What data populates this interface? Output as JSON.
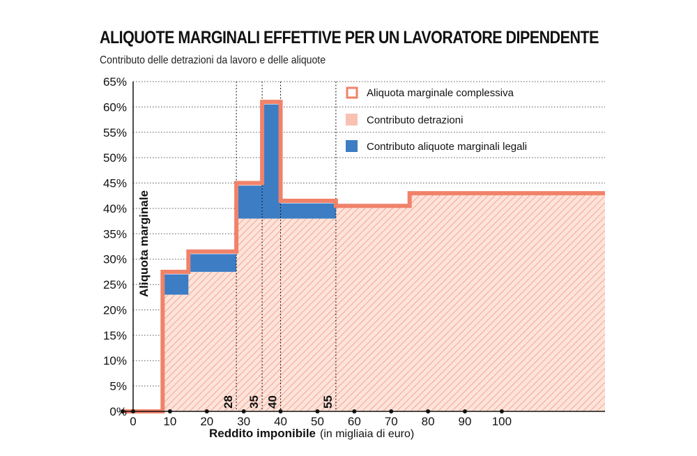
{
  "title": "ALIQUOTE MARGINALI EFFETTIVE PER UN LAVORATORE DIPENDENTE",
  "subtitle": "Contributo delle detrazioni da lavoro e delle aliquote",
  "colors": {
    "total": "#f0826a",
    "detrazioni": "#f7c2b2",
    "legali": "#3c7dc4",
    "grid": "#555555"
  },
  "chart_data": {
    "type": "area",
    "xlabel": "Reddito imponibile",
    "xlabel_unit": "(in migliaia di euro)",
    "ylabel": "Aliquota marginale",
    "xlim": [
      -3,
      128
    ],
    "ylim": [
      0,
      65
    ],
    "x_ticks": [
      0,
      10,
      20,
      30,
      40,
      50,
      60,
      70,
      80,
      90,
      100
    ],
    "y_ticks": [
      0,
      5,
      10,
      15,
      20,
      25,
      30,
      35,
      40,
      45,
      50,
      55,
      60,
      65
    ],
    "y_tick_labels": [
      "0%",
      "5%",
      "10%",
      "15%",
      "20%",
      "25%",
      "30%",
      "35%",
      "40%",
      "45%",
      "50%",
      "55%",
      "60%",
      "65%"
    ],
    "vertical_markers": [
      {
        "x": 28,
        "label": "28"
      },
      {
        "x": 35,
        "label": "35"
      },
      {
        "x": 40,
        "label": "40"
      },
      {
        "x": 55,
        "label": "55"
      }
    ],
    "legend_position": "top-right",
    "series": [
      {
        "name": "Aliquota marginale complessiva",
        "segments": [
          {
            "x0": 0,
            "x1": 8,
            "value": 0
          },
          {
            "x0": 8,
            "x1": 15,
            "value": 27.5
          },
          {
            "x0": 15,
            "x1": 28,
            "value": 31.5
          },
          {
            "x0": 28,
            "x1": 35,
            "value": 45
          },
          {
            "x0": 35,
            "x1": 40,
            "value": 61
          },
          {
            "x0": 40,
            "x1": 55,
            "value": 41.5
          },
          {
            "x0": 55,
            "x1": 75,
            "value": 40.5
          },
          {
            "x0": 75,
            "x1": 128,
            "value": 43
          }
        ]
      },
      {
        "name": "Contributo detrazioni",
        "segments": [
          {
            "x0": 8,
            "x1": 15,
            "value": 23
          },
          {
            "x0": 15,
            "x1": 28,
            "value": 27.5
          },
          {
            "x0": 28,
            "x1": 35,
            "value": 38
          },
          {
            "x0": 35,
            "x1": 40,
            "value": 38
          },
          {
            "x0": 40,
            "x1": 55,
            "value": 38
          },
          {
            "x0": 55,
            "x1": 75,
            "value": 40.5
          },
          {
            "x0": 75,
            "x1": 128,
            "value": 43
          }
        ]
      },
      {
        "name": "Contributo aliquote marginali legali",
        "segments": [
          {
            "x0": 8,
            "x1": 15,
            "y0": 23,
            "y1": 27
          },
          {
            "x0": 15,
            "x1": 28,
            "y0": 27.5,
            "y1": 31
          },
          {
            "x0": 28,
            "x1": 35,
            "y0": 38,
            "y1": 44.5
          },
          {
            "x0": 35,
            "x1": 40,
            "y0": 38,
            "y1": 60.5
          },
          {
            "x0": 40,
            "x1": 55,
            "y0": 38,
            "y1": 41
          }
        ]
      }
    ]
  }
}
